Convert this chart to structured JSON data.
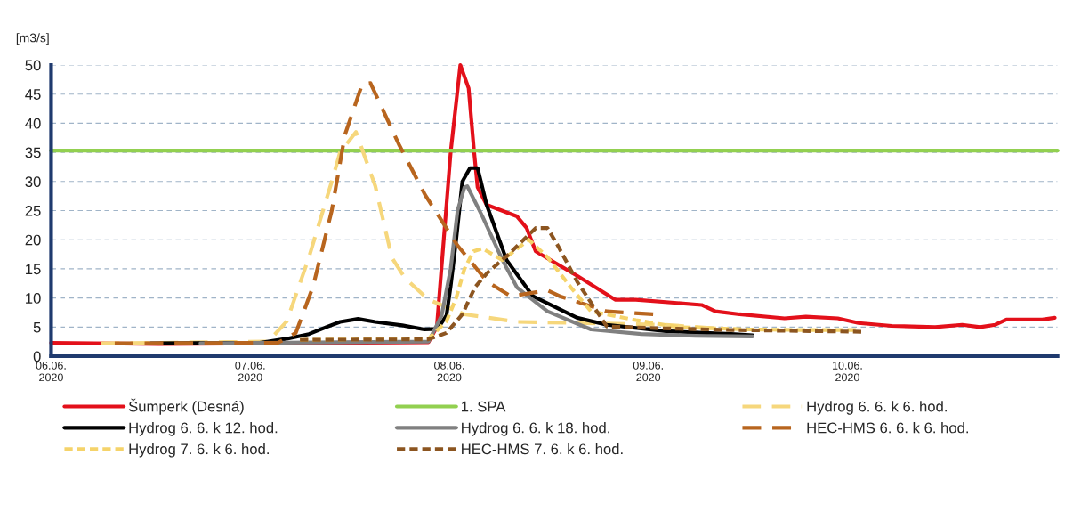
{
  "chart_data": {
    "type": "line",
    "ylabel": "[m3/s]",
    "xlim": [
      "2020-06-06T00:00",
      "2020-06-11T01:20"
    ],
    "xticks": [
      {
        "value": "2020-06-06",
        "label": "06.06.\n2020"
      },
      {
        "value": "2020-06-07",
        "label": "07.06.\n2020"
      },
      {
        "value": "2020-06-08",
        "label": "08.06.\n2020"
      },
      {
        "value": "2020-06-09",
        "label": "09.06.\n2020"
      },
      {
        "value": "2020-06-10",
        "label": "10.06.\n2020"
      }
    ],
    "ylim": [
      0,
      50
    ],
    "yticks": [
      0,
      5,
      10,
      15,
      20,
      25,
      30,
      35,
      40,
      45,
      50
    ],
    "grid": "y",
    "legend": "bottom",
    "series": [
      {
        "name": "Šumperk (Desná)",
        "color": "#e3101a",
        "line_style": "solid",
        "x": [
          "2020-06-06T00:00",
          "2020-06-06T13:00",
          "2020-06-07T02:00",
          "2020-06-07T21:30",
          "2020-06-07T22:30",
          "2020-06-08T00:10",
          "2020-06-08T01:20",
          "2020-06-08T02:20",
          "2020-06-08T03:00",
          "2020-06-08T03:25",
          "2020-06-08T04:30",
          "2020-06-08T08:10",
          "2020-06-08T09:20",
          "2020-06-08T10:25",
          "2020-06-08T15:25",
          "2020-06-08T20:00",
          "2020-06-08T22:30",
          "2020-06-09T06:25",
          "2020-06-09T08:05",
          "2020-06-09T11:00",
          "2020-06-09T16:25",
          "2020-06-09T19:00",
          "2020-06-09T22:50",
          "2020-06-10T01:20",
          "2020-06-10T05:20",
          "2020-06-10T10:35",
          "2020-06-10T13:50",
          "2020-06-10T16:00",
          "2020-06-10T17:50",
          "2020-06-10T19:10",
          "2020-06-10T23:30",
          "2020-06-11T01:00"
        ],
        "values": [
          2.3,
          2.1,
          2.2,
          2.4,
          5,
          35,
          50,
          46,
          35,
          29,
          26,
          24,
          22,
          18,
          13.8,
          9.7,
          9.7,
          8.8,
          7.7,
          7.2,
          6.5,
          6.8,
          6.5,
          5.7,
          5.2,
          5.0,
          5.4,
          5.0,
          5.4,
          6.3,
          6.3,
          6.6
        ]
      },
      {
        "name": "1. SPA",
        "color": "#92d050",
        "line_style": "solid",
        "x": [
          "2020-06-06T00:00",
          "2020-06-11T01:20"
        ],
        "values": [
          35.3,
          35.3
        ]
      },
      {
        "name": "Hydrog 6. 6. k 6. hod.",
        "color": "#f6d77c",
        "line_style": "dashed",
        "x": [
          "2020-06-06T06:00",
          "2020-06-07T02:10",
          "2020-06-07T04:25",
          "2020-06-07T07:05",
          "2020-06-07T09:50",
          "2020-06-07T10:50",
          "2020-06-07T12:45",
          "2020-06-07T15:05",
          "2020-06-07T17:05",
          "2020-06-07T18:40",
          "2020-06-07T21:30",
          "2020-06-08T01:50",
          "2020-06-08T08:10",
          "2020-06-09T02:05",
          "2020-06-09T07:50"
        ],
        "values": [
          2.2,
          2.5,
          6,
          17,
          30,
          35,
          38.5,
          29.2,
          16.9,
          13.4,
          9.7,
          7.2,
          5.9,
          5.4,
          4.8
        ]
      },
      {
        "name": "Hydrog 6. 6. k 12. hod.",
        "color": "#000000",
        "line_style": "solid",
        "x": [
          "2020-06-06T12:00",
          "2020-06-07T01:10",
          "2020-06-07T04:25",
          "2020-06-07T07:05",
          "2020-06-07T09:10",
          "2020-06-07T10:50",
          "2020-06-07T13:00",
          "2020-06-07T15:05",
          "2020-06-07T18:20",
          "2020-06-07T21:00",
          "2020-06-07T22:35",
          "2020-06-07T23:40",
          "2020-06-08T00:10",
          "2020-06-08T00:50",
          "2020-06-08T01:35",
          "2020-06-08T02:30",
          "2020-06-08T03:25",
          "2020-06-08T04:30",
          "2020-06-08T06:55",
          "2020-06-08T10:05",
          "2020-06-08T15:25",
          "2020-06-08T19:00",
          "2020-06-09T02:05",
          "2020-06-09T10:00",
          "2020-06-09T12:35"
        ],
        "values": [
          2.2,
          2.3,
          3.0,
          3.8,
          5.0,
          5.9,
          6.4,
          5.9,
          5.3,
          4.6,
          4.7,
          7,
          12,
          20,
          30,
          32.3,
          32.3,
          26,
          16.5,
          10.3,
          6.6,
          5.4,
          4.3,
          3.8,
          3.6
        ]
      },
      {
        "name": "Hydrog 6. 6. k 18. hod.",
        "color": "#808080",
        "line_style": "solid",
        "x": [
          "2020-06-06T18:00",
          "2020-06-07T21:30",
          "2020-06-07T23:05",
          "2020-06-08T00:10",
          "2020-06-08T01:00",
          "2020-06-08T01:50",
          "2020-06-08T02:10",
          "2020-06-08T04:00",
          "2020-06-08T06:25",
          "2020-06-08T08:10",
          "2020-06-08T11:50",
          "2020-06-08T17:05",
          "2020-06-08T23:10",
          "2020-06-09T05:40",
          "2020-06-09T12:35"
        ],
        "values": [
          2.2,
          2.5,
          7,
          15,
          25,
          29,
          29.2,
          24,
          16.5,
          11.8,
          7.7,
          4.6,
          3.8,
          3.5,
          3.4
        ]
      },
      {
        "name": "HEC-HMS 6. 6. k 6. hod.",
        "color": "#b8651e",
        "line_style": "dashed",
        "x": [
          "2020-06-06T07:40",
          "2020-06-07T03:20",
          "2020-06-07T05:30",
          "2020-06-07T07:35",
          "2020-06-07T09:50",
          "2020-06-07T11:25",
          "2020-06-07T13:30",
          "2020-06-07T14:30",
          "2020-06-07T17:55",
          "2020-06-07T21:05",
          "2020-06-08T01:00",
          "2020-06-08T04:35",
          "2020-06-08T07:25",
          "2020-06-08T11:50",
          "2020-06-08T13:20",
          "2020-06-08T19:00",
          "2020-06-09T00:35"
        ],
        "values": [
          2.2,
          2.3,
          4,
          12,
          25,
          38,
          46.7,
          46.9,
          36.4,
          27.7,
          19,
          12.8,
          10.3,
          11.3,
          10.3,
          7.7,
          7.2
        ]
      },
      {
        "name": "Hydrog 7. 6. k 6. hod.",
        "color": "#f5d36a",
        "line_style": "dotted",
        "x": [
          "2020-06-07T06:00",
          "2020-06-07T21:30",
          "2020-06-07T23:40",
          "2020-06-08T00:50",
          "2020-06-08T01:50",
          "2020-06-08T02:55",
          "2020-06-08T04:00",
          "2020-06-08T06:25",
          "2020-06-08T09:35",
          "2020-06-08T11:50",
          "2020-06-08T14:40",
          "2020-06-08T17:05",
          "2020-06-08T22:30",
          "2020-06-09T03:30",
          "2020-06-09T12:00",
          "2020-06-09T18:30",
          "2020-06-10T01:00"
        ],
        "values": [
          2.8,
          3,
          6,
          10,
          15,
          18,
          18.5,
          16.5,
          20,
          17,
          11.8,
          7.7,
          6.2,
          5,
          4.6,
          4.5,
          4.5
        ]
      },
      {
        "name": "HEC-HMS 7. 6. k 6. hod.",
        "color": "#8c5520",
        "line_style": "dotted",
        "x": [
          "2020-06-07T06:00",
          "2020-06-07T21:30",
          "2020-06-07T23:40",
          "2020-06-08T01:35",
          "2020-06-08T03:05",
          "2020-06-08T04:35",
          "2020-06-08T07:10",
          "2020-06-08T09:20",
          "2020-06-08T10:25",
          "2020-06-08T11:50",
          "2020-06-08T13:05",
          "2020-06-08T15:25",
          "2020-06-08T19:00",
          "2020-06-09T01:25",
          "2020-06-09T10:00",
          "2020-06-10T01:40"
        ],
        "values": [
          2.8,
          2.9,
          4,
          7.2,
          11.8,
          14.3,
          17.5,
          20.5,
          22,
          22,
          19,
          12.8,
          5.1,
          4.8,
          4.5,
          4.2
        ]
      }
    ]
  }
}
